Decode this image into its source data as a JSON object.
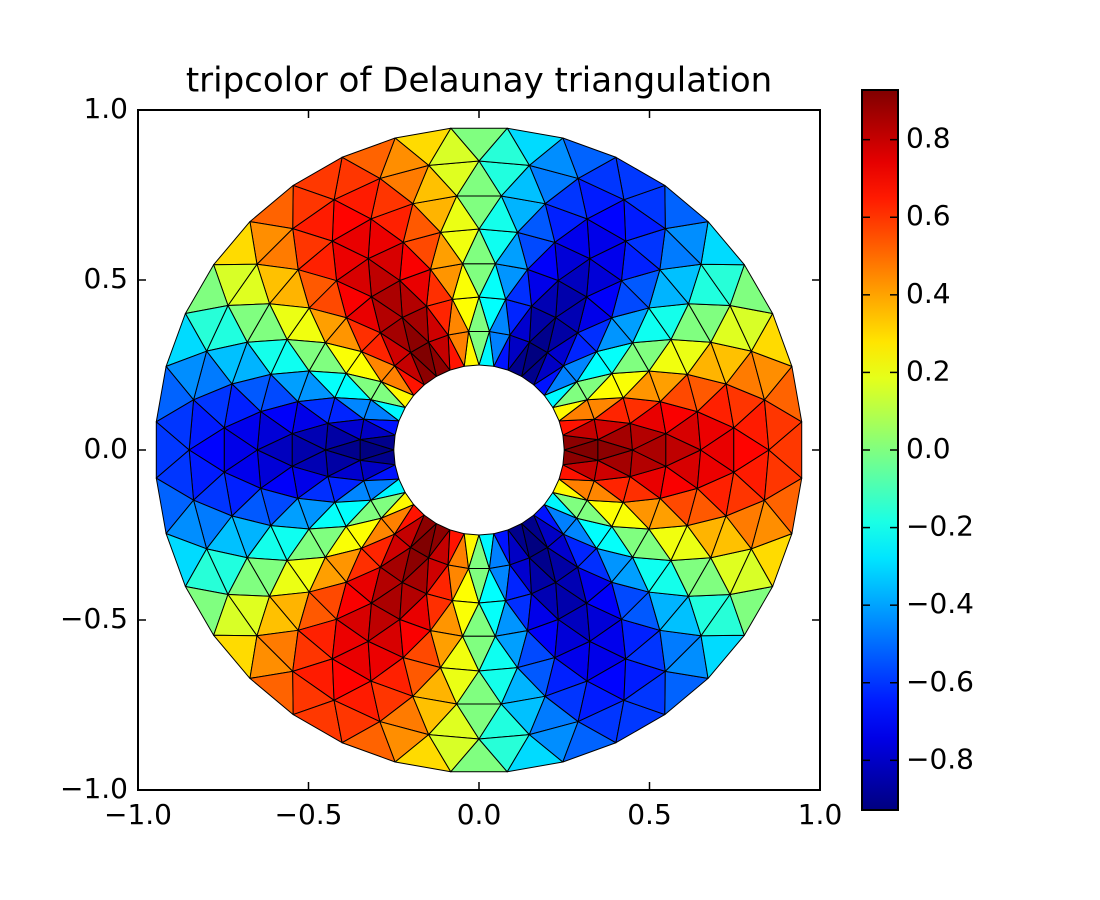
{
  "chart_data": {
    "type": "tripcolor",
    "title": "tripcolor of Delaunay triangulation",
    "xlim": [
      -1,
      1
    ],
    "ylim": [
      -1,
      1
    ],
    "xticks": [
      {
        "value": -1,
        "label": "−1.0"
      },
      {
        "value": -0.5,
        "label": "−0.5"
      },
      {
        "value": 0,
        "label": "0.0"
      },
      {
        "value": 0.5,
        "label": "0.5"
      },
      {
        "value": 1,
        "label": "1.0"
      }
    ],
    "yticks": [
      {
        "value": -1,
        "label": "−1.0"
      },
      {
        "value": -0.5,
        "label": "−0.5"
      },
      {
        "value": 0,
        "label": "0.0"
      },
      {
        "value": 0.5,
        "label": "0.5"
      },
      {
        "value": 1,
        "label": "1.0"
      }
    ],
    "colormap": "jet",
    "clim": [
      -0.928,
      0.928
    ],
    "cticks": [
      {
        "value": -0.8,
        "label": "−0.8"
      },
      {
        "value": -0.6,
        "label": "−0.6"
      },
      {
        "value": -0.4,
        "label": "−0.4"
      },
      {
        "value": -0.2,
        "label": "−0.2"
      },
      {
        "value": 0,
        "label": "0.0"
      },
      0.2,
      0.4,
      0.6,
      0.8
    ],
    "rings": [
      {
        "radius": 0.25,
        "angle_start": 0,
        "z": [
          0.969,
          0.839,
          0.484,
          0,
          -0.484,
          -0.839,
          -0.969,
          -0.839,
          -0.484,
          0,
          0.484,
          0.839,
          0.969,
          0.839,
          0.484,
          0,
          -0.484,
          -0.839,
          -0.969,
          -0.839,
          -0.484,
          0,
          0.484,
          0.839,
          0.969,
          0.839,
          0.484,
          0,
          -0.484,
          -0.839,
          -0.969,
          -0.839,
          -0.484,
          0,
          0.484,
          0.839
        ]
      },
      {
        "radius": 0.35,
        "angle_start": 5,
        "z": [
          0.907,
          0.664,
          0.243,
          -0.243,
          -0.664,
          -0.907,
          -0.907,
          -0.664,
          -0.243,
          0.243,
          0.664,
          0.907,
          0.907,
          0.664,
          0.243,
          -0.243,
          -0.664,
          -0.907,
          -0.907,
          -0.664,
          -0.243,
          0.243,
          0.664,
          0.907,
          0.907,
          0.664,
          0.243,
          -0.243,
          -0.664,
          -0.907,
          -0.907,
          -0.664,
          -0.243,
          0.243,
          0.664,
          0.907
        ]
      },
      {
        "radius": 0.45,
        "angle_start": 0,
        "z": [
          0.9,
          0.78,
          0.45,
          0,
          -0.45,
          -0.78,
          -0.9,
          -0.78,
          -0.45,
          0,
          0.45,
          0.78,
          0.9,
          0.78,
          0.45,
          0,
          -0.45,
          -0.78,
          -0.9,
          -0.78,
          -0.45,
          0,
          0.45,
          0.78,
          0.9,
          0.78,
          0.45,
          0,
          -0.45,
          -0.78,
          -0.9,
          -0.78,
          -0.45,
          0,
          0.45,
          0.78
        ]
      },
      {
        "radius": 0.55,
        "angle_start": 5,
        "z": [
          0.823,
          0.603,
          0.221,
          -0.221,
          -0.603,
          -0.823,
          -0.823,
          -0.603,
          -0.221,
          0.221,
          0.603,
          0.823,
          0.823,
          0.603,
          0.221,
          -0.221,
          -0.603,
          -0.823,
          -0.823,
          -0.603,
          -0.221,
          0.221,
          0.603,
          0.823,
          0.823,
          0.603,
          0.221,
          -0.221,
          -0.603,
          -0.823,
          -0.823,
          -0.603,
          -0.221,
          0.221,
          0.603,
          0.823
        ]
      },
      {
        "radius": 0.65,
        "angle_start": 0,
        "z": [
          0.796,
          0.689,
          0.398,
          0,
          -0.398,
          -0.689,
          -0.796,
          -0.689,
          -0.398,
          0,
          0.398,
          0.689,
          0.796,
          0.689,
          0.398,
          0,
          -0.398,
          -0.689,
          -0.796,
          -0.689,
          -0.398,
          0,
          0.398,
          0.689,
          0.796,
          0.689,
          0.398,
          0,
          -0.398,
          -0.689,
          -0.796,
          -0.689,
          -0.398,
          0,
          0.398,
          0.689
        ]
      },
      {
        "radius": 0.75,
        "angle_start": 5,
        "z": [
          0.707,
          0.517,
          0.19,
          -0.19,
          -0.517,
          -0.707,
          -0.707,
          -0.517,
          -0.19,
          0.19,
          0.517,
          0.707,
          0.707,
          0.517,
          0.19,
          -0.19,
          -0.517,
          -0.707,
          -0.707,
          -0.517,
          -0.19,
          0.19,
          0.517,
          0.707,
          0.707,
          0.517,
          0.19,
          -0.19,
          -0.517,
          -0.707,
          -0.707,
          -0.517,
          -0.19,
          0.19,
          0.517,
          0.707
        ]
      },
      {
        "radius": 0.85,
        "angle_start": 0,
        "z": [
          0.66,
          0.572,
          0.33,
          0,
          -0.33,
          -0.572,
          -0.66,
          -0.572,
          -0.33,
          0,
          0.33,
          0.572,
          0.66,
          0.572,
          0.33,
          0,
          -0.33,
          -0.572,
          -0.66,
          -0.572,
          -0.33,
          0,
          0.33,
          0.572,
          0.66,
          0.572,
          0.33,
          0,
          -0.33,
          -0.572,
          -0.66,
          -0.572,
          -0.33,
          0,
          0.33,
          0.572
        ]
      },
      {
        "radius": 0.95,
        "angle_start": 5,
        "z": [
          0.562,
          0.411,
          0.151,
          -0.151,
          -0.411,
          -0.562,
          -0.562,
          -0.411,
          -0.151,
          0.151,
          0.411,
          0.562,
          0.562,
          0.411,
          0.151,
          -0.151,
          -0.411,
          -0.562,
          -0.562,
          -0.411,
          -0.151,
          0.151,
          0.411,
          0.562,
          0.562,
          0.411,
          0.151,
          -0.151,
          -0.411,
          -0.562,
          -0.562,
          -0.411,
          -0.151,
          0.151,
          0.411,
          0.562
        ]
      }
    ]
  }
}
